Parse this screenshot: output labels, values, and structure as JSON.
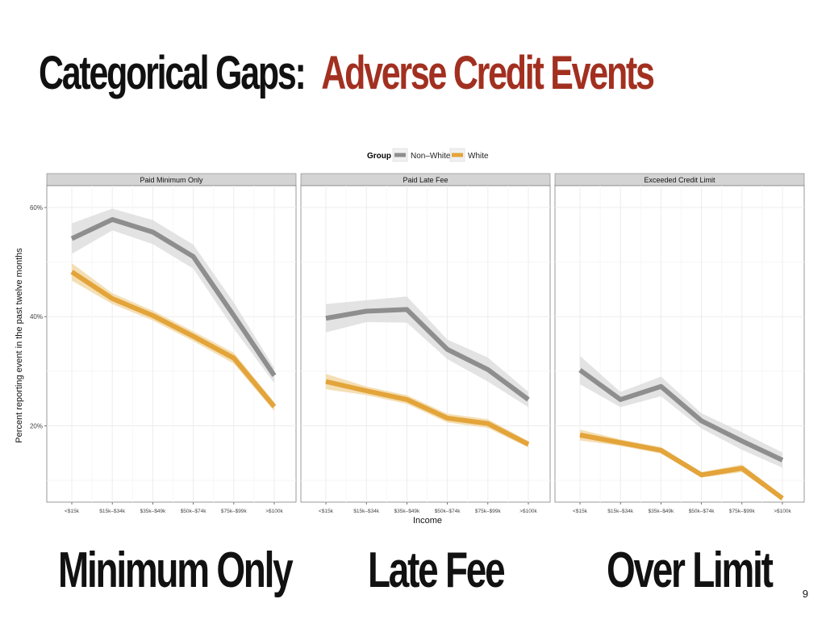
{
  "slide": {
    "title_part1": "Categorical Gaps:",
    "title_part2": "Adverse Credit Events",
    "page_number": "9",
    "bottom_labels": [
      "Minimum Only",
      "Late Fee",
      "Over Limit"
    ]
  },
  "colors": {
    "non_white": "#8e8e8e",
    "white": "#e3a43a",
    "title_accent": "#a23020"
  },
  "chart_data": {
    "type": "line",
    "legend_title": "Group",
    "legend_position": "top",
    "xlabel": "Income",
    "ylabel": "Percent reporting event in the past twelve months",
    "ylim": [
      0.06,
      0.64
    ],
    "yticks": [
      0.2,
      0.4,
      0.6
    ],
    "ytick_labels": [
      "20%",
      "40%",
      "60%"
    ],
    "categories": [
      "<$15k",
      "$15k–$34k",
      "$35k–$49k",
      "$50k–$74k",
      "$75k–$99k",
      ">$100k"
    ],
    "panels": [
      {
        "title": "Paid Minimum Only",
        "series": [
          {
            "name": "Non–White",
            "values": [
              0.543,
              0.578,
              0.555,
              0.51,
              0.402,
              0.292
            ],
            "band": [
              0.028,
              0.02,
              0.022,
              0.022,
              0.024,
              0.014
            ]
          },
          {
            "name": "White",
            "values": [
              0.482,
              0.433,
              0.402,
              0.364,
              0.324,
              0.235
            ],
            "band": [
              0.016,
              0.01,
              0.009,
              0.009,
              0.01,
              0.008
            ]
          }
        ]
      },
      {
        "title": "Paid Late Fee",
        "series": [
          {
            "name": "Non–White",
            "values": [
              0.397,
              0.41,
              0.413,
              0.34,
              0.303,
              0.248
            ],
            "band": [
              0.026,
              0.02,
              0.024,
              0.018,
              0.022,
              0.014
            ]
          },
          {
            "name": "White",
            "values": [
              0.281,
              0.264,
              0.248,
              0.214,
              0.204,
              0.166
            ],
            "band": [
              0.014,
              0.008,
              0.008,
              0.008,
              0.008,
              0.006
            ]
          }
        ]
      },
      {
        "title": "Exceeded Credit Limit",
        "series": [
          {
            "name": "Non–White",
            "values": [
              0.302,
              0.248,
              0.272,
              0.209,
              0.172,
              0.137
            ],
            "band": [
              0.026,
              0.014,
              0.018,
              0.014,
              0.016,
              0.014
            ]
          },
          {
            "name": "White",
            "values": [
              0.183,
              0.169,
              0.155,
              0.11,
              0.122,
              0.067
            ],
            "band": [
              0.01,
              0.006,
              0.006,
              0.005,
              0.007,
              0.005
            ]
          }
        ]
      }
    ]
  }
}
